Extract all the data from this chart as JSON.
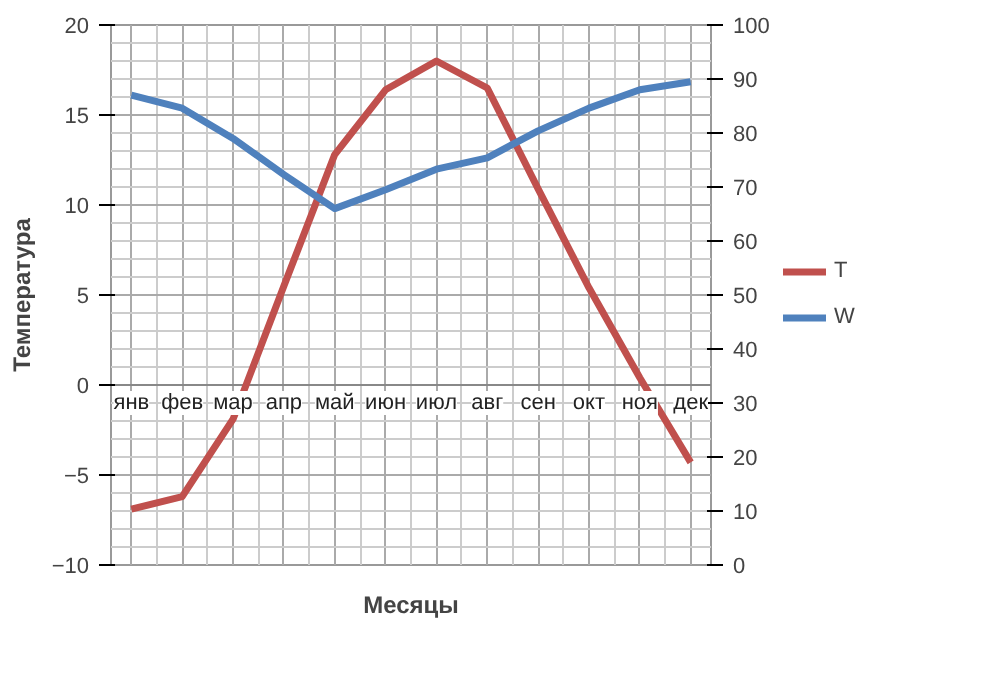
{
  "chart_data": {
    "type": "line",
    "xlabel": "Месяцы",
    "ylabel": "Температура",
    "categories": [
      "янв",
      "фев",
      "мар",
      "апр",
      "май",
      "июн",
      "июл",
      "авг",
      "сен",
      "окт",
      "ноя",
      "дек"
    ],
    "series": [
      {
        "name": "T",
        "color": "#c0504d",
        "values": [
          -6.9,
          -6.2,
          -1.9,
          5.5,
          12.8,
          16.4,
          18.0,
          16.5,
          10.9,
          5.4,
          0.4,
          -4.3
        ]
      },
      {
        "name": "W",
        "color": "#4f81bd",
        "axis": "y2",
        "values": [
          87,
          84.6,
          79,
          72.3,
          66,
          69.5,
          73.3,
          75.4,
          80.4,
          84.6,
          88,
          89.5
        ]
      }
    ],
    "ylim": [
      -10,
      20
    ],
    "yticks": [
      -10,
      -5,
      0,
      5,
      10,
      15,
      20
    ],
    "y2lim": [
      0,
      100
    ],
    "y2ticks": [
      0,
      10,
      20,
      30,
      40,
      50,
      60,
      70,
      80,
      90,
      100
    ],
    "grid": true,
    "legend": "right",
    "marker": "none",
    "line_style": "solid"
  }
}
